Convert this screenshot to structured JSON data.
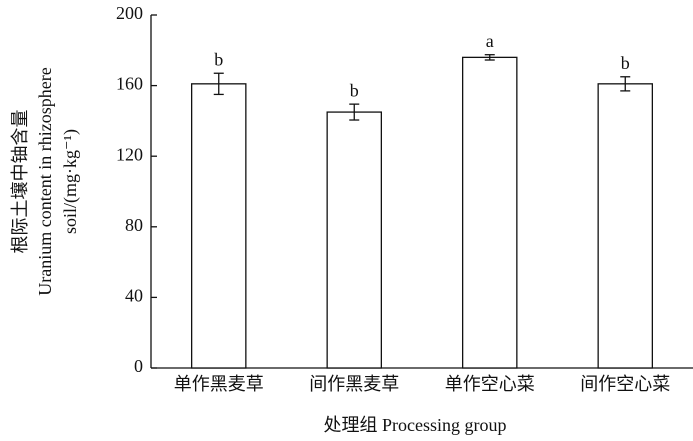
{
  "chart_data": {
    "type": "bar",
    "y_label_lines": [
      "根际土壤中铀含量",
      "Uranium content in rhizosphere",
      "soil/(mg·kg⁻¹)"
    ],
    "x_label": "处理组 Processing group",
    "categories": [
      "单作黑麦草",
      "间作黑麦草",
      "单作空心菜",
      "间作空心菜"
    ],
    "values": [
      161,
      145,
      176,
      161
    ],
    "errors": [
      6,
      4.5,
      1.5,
      4
    ],
    "letters": [
      "b",
      "b",
      "a",
      "b"
    ],
    "color": "#ffffff",
    "ylim": [
      0,
      200
    ],
    "yticks": [
      0,
      40,
      80,
      120,
      160,
      200
    ],
    "grid": false
  }
}
